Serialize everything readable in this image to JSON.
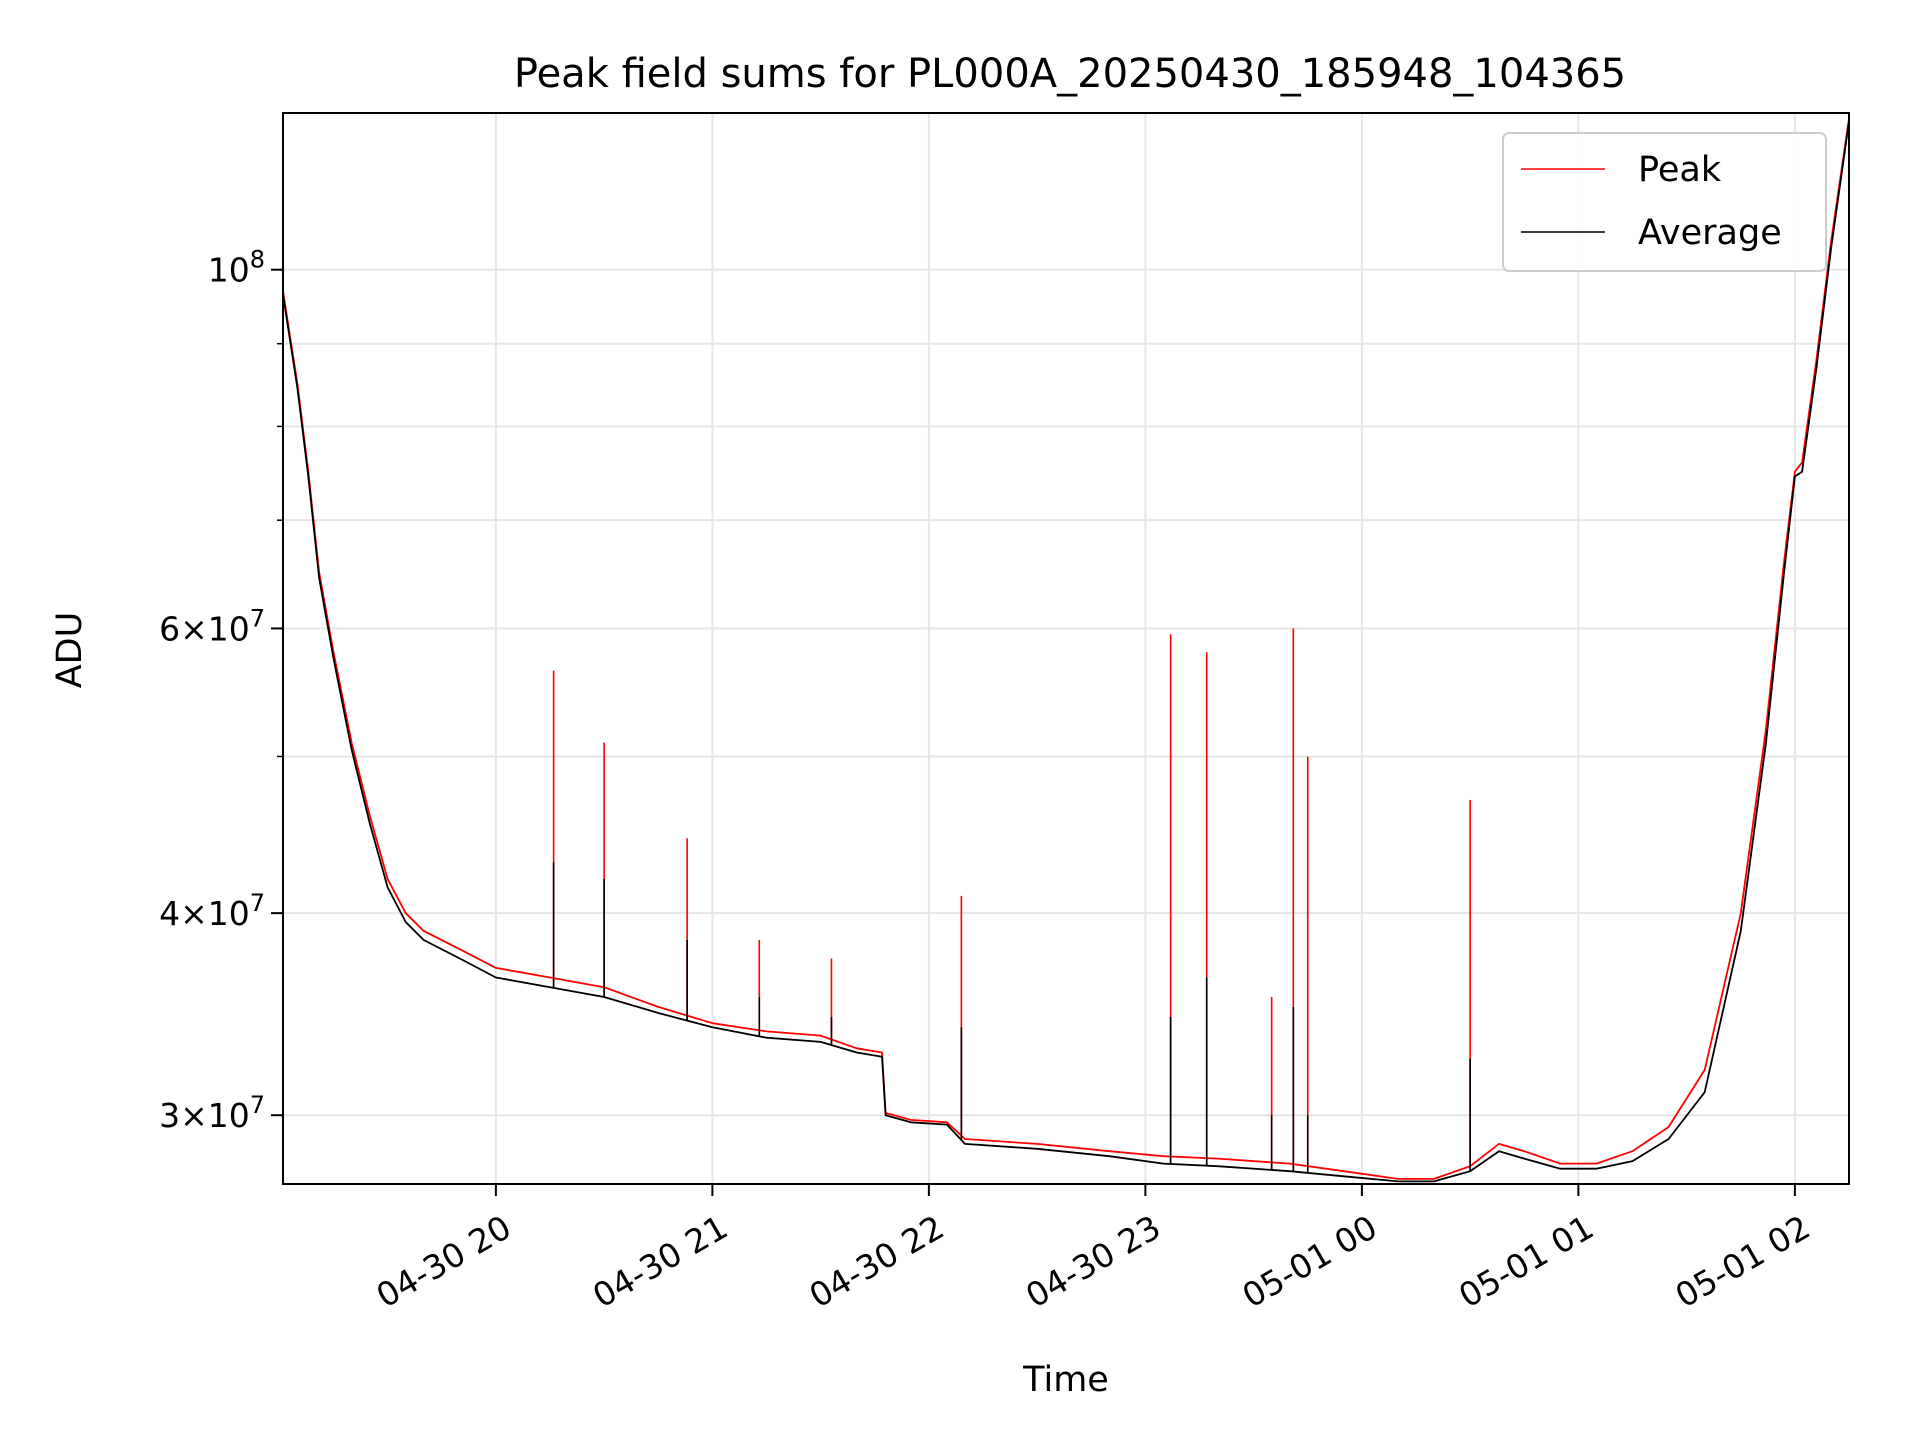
{
  "chart_data": {
    "type": "line",
    "title": "Peak field sums for PL000A_20250430_185948_104365",
    "xlabel": "Time",
    "ylabel": "ADU",
    "y_scale": "log",
    "grid": true,
    "legend_position": "top-right",
    "xlim": [
      "2025-04-30 19:01",
      "2025-05-01 02:15"
    ],
    "ylim": [
      27200000,
      125000000
    ],
    "x_ticks": [
      "04-30 20",
      "04-30 21",
      "04-30 22",
      "04-30 23",
      "05-01 00",
      "05-01 01",
      "05-01 02"
    ],
    "y_ticks": [
      {
        "value": 30000000,
        "base": "3",
        "exp": "7"
      },
      {
        "value": 40000000,
        "base": "4",
        "exp": "7"
      },
      {
        "value": 60000000,
        "base": "6",
        "exp": "7"
      },
      {
        "value": 100000000,
        "base": "10",
        "exp": "8"
      }
    ],
    "series": [
      {
        "name": "Peak",
        "color": "#ff0000",
        "points": [
          [
            "2025-04-30 19:01",
            97000000
          ],
          [
            "2025-04-30 19:05",
            85000000
          ],
          [
            "2025-04-30 19:08",
            75000000
          ],
          [
            "2025-04-30 19:11",
            65000000
          ],
          [
            "2025-04-30 19:15",
            58000000
          ],
          [
            "2025-04-30 19:20",
            51000000
          ],
          [
            "2025-04-30 19:25",
            46000000
          ],
          [
            "2025-04-30 19:30",
            42000000
          ],
          [
            "2025-04-30 19:35",
            40000000
          ],
          [
            "2025-04-30 19:40",
            39000000
          ],
          [
            "2025-04-30 19:50",
            38000000
          ],
          [
            "2025-04-30 20:00",
            37000000
          ],
          [
            "2025-04-30 20:15",
            36500000
          ],
          [
            "2025-04-30 20:30",
            36000000
          ],
          [
            "2025-04-30 20:45",
            35000000
          ],
          [
            "2025-04-30 21:00",
            34200000
          ],
          [
            "2025-04-30 21:15",
            33800000
          ],
          [
            "2025-04-30 21:30",
            33600000
          ],
          [
            "2025-04-30 21:40",
            33000000
          ],
          [
            "2025-04-30 21:47",
            32800000
          ],
          [
            "2025-04-30 21:48",
            30100000
          ],
          [
            "2025-04-30 21:55",
            29800000
          ],
          [
            "2025-04-30 22:05",
            29700000
          ],
          [
            "2025-04-30 22:10",
            29000000
          ],
          [
            "2025-04-30 22:30",
            28800000
          ],
          [
            "2025-04-30 22:50",
            28500000
          ],
          [
            "2025-04-30 23:05",
            28300000
          ],
          [
            "2025-04-30 23:20",
            28200000
          ],
          [
            "2025-04-30 23:40",
            28000000
          ],
          [
            "2025-04-30 23:55",
            27700000
          ],
          [
            "2025-05-01 00:10",
            27400000
          ],
          [
            "2025-05-01 00:20",
            27400000
          ],
          [
            "2025-05-01 00:30",
            27900000
          ],
          [
            "2025-05-01 00:38",
            28800000
          ],
          [
            "2025-05-01 00:45",
            28500000
          ],
          [
            "2025-05-01 00:55",
            28000000
          ],
          [
            "2025-05-01 01:05",
            28000000
          ],
          [
            "2025-05-01 01:15",
            28500000
          ],
          [
            "2025-05-01 01:25",
            29500000
          ],
          [
            "2025-05-01 01:35",
            32000000
          ],
          [
            "2025-05-01 01:45",
            40000000
          ],
          [
            "2025-05-01 01:52",
            52000000
          ],
          [
            "2025-05-01 01:57",
            66000000
          ],
          [
            "2025-05-01 02:00",
            75000000
          ],
          [
            "2025-05-01 02:02",
            76000000
          ],
          [
            "2025-05-01 02:06",
            88000000
          ],
          [
            "2025-05-01 02:10",
            104000000
          ],
          [
            "2025-05-01 02:15",
            124000000
          ]
        ]
      },
      {
        "name": "Average",
        "color": "#000000",
        "points": [
          [
            "2025-04-30 19:01",
            96500000
          ],
          [
            "2025-04-30 19:05",
            84500000
          ],
          [
            "2025-04-30 19:08",
            74500000
          ],
          [
            "2025-04-30 19:11",
            64500000
          ],
          [
            "2025-04-30 19:15",
            57500000
          ],
          [
            "2025-04-30 19:20",
            50500000
          ],
          [
            "2025-04-30 19:25",
            45500000
          ],
          [
            "2025-04-30 19:30",
            41500000
          ],
          [
            "2025-04-30 19:35",
            39500000
          ],
          [
            "2025-04-30 19:40",
            38500000
          ],
          [
            "2025-04-30 19:50",
            37500000
          ],
          [
            "2025-04-30 20:00",
            36500000
          ],
          [
            "2025-04-30 20:15",
            36000000
          ],
          [
            "2025-04-30 20:30",
            35500000
          ],
          [
            "2025-04-30 20:45",
            34700000
          ],
          [
            "2025-04-30 21:00",
            34000000
          ],
          [
            "2025-04-30 21:15",
            33500000
          ],
          [
            "2025-04-30 21:30",
            33300000
          ],
          [
            "2025-04-30 21:40",
            32800000
          ],
          [
            "2025-04-30 21:47",
            32600000
          ],
          [
            "2025-04-30 21:48",
            30000000
          ],
          [
            "2025-04-30 21:55",
            29700000
          ],
          [
            "2025-04-30 22:05",
            29600000
          ],
          [
            "2025-04-30 22:10",
            28800000
          ],
          [
            "2025-04-30 22:30",
            28600000
          ],
          [
            "2025-04-30 22:50",
            28300000
          ],
          [
            "2025-04-30 23:05",
            28000000
          ],
          [
            "2025-04-30 23:20",
            27900000
          ],
          [
            "2025-04-30 23:40",
            27700000
          ],
          [
            "2025-04-30 23:55",
            27500000
          ],
          [
            "2025-05-01 00:10",
            27300000
          ],
          [
            "2025-05-01 00:20",
            27300000
          ],
          [
            "2025-05-01 00:30",
            27700000
          ],
          [
            "2025-05-01 00:38",
            28500000
          ],
          [
            "2025-05-01 00:45",
            28200000
          ],
          [
            "2025-05-01 00:55",
            27800000
          ],
          [
            "2025-05-01 01:05",
            27800000
          ],
          [
            "2025-05-01 01:15",
            28100000
          ],
          [
            "2025-05-01 01:25",
            29000000
          ],
          [
            "2025-05-01 01:35",
            31000000
          ],
          [
            "2025-05-01 01:45",
            39000000
          ],
          [
            "2025-05-01 01:52",
            51000000
          ],
          [
            "2025-05-01 01:57",
            65000000
          ],
          [
            "2025-05-01 02:00",
            74500000
          ],
          [
            "2025-05-01 02:02",
            75000000
          ],
          [
            "2025-05-01 02:06",
            87000000
          ],
          [
            "2025-05-01 02:10",
            103000000
          ],
          [
            "2025-05-01 02:15",
            123500000
          ]
        ],
        "spikes": [
          [
            "2025-04-30 20:16",
            56500000,
            43000000
          ],
          [
            "2025-04-30 20:30",
            51000000,
            42000000
          ],
          [
            "2025-04-30 20:53",
            44500000,
            38500000
          ],
          [
            "2025-04-30 21:13",
            38500000,
            35500000
          ],
          [
            "2025-04-30 21:33",
            37500000,
            34500000
          ],
          [
            "2025-04-30 22:09",
            41000000,
            34000000
          ],
          [
            "2025-04-30 23:07",
            59500000,
            34500000
          ],
          [
            "2025-04-30 23:17",
            58000000,
            36500000
          ],
          [
            "2025-04-30 23:35",
            35500000,
            30000000
          ],
          [
            "2025-04-30 23:41",
            60000000,
            35000000
          ],
          [
            "2025-04-30 23:45",
            50000000,
            30000000
          ],
          [
            "2025-05-01 00:30",
            47000000,
            32500000
          ]
        ]
      }
    ]
  }
}
